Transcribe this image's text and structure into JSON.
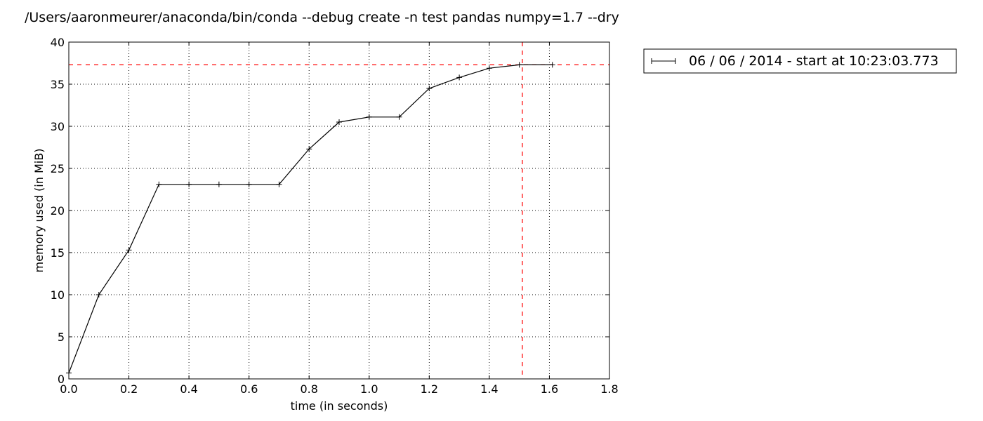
{
  "chart_data": {
    "type": "line",
    "title": "/Users/aaronmeurer/anaconda/bin/conda --debug create -n test pandas numpy=1.7 --dry",
    "xlabel": "time (in seconds)",
    "ylabel": "memory used (in MiB)",
    "xlim": [
      0.0,
      1.8
    ],
    "ylim": [
      0,
      40
    ],
    "x_ticks": [
      0.0,
      0.2,
      0.4,
      0.6,
      0.8,
      1.0,
      1.2,
      1.4,
      1.6,
      1.8
    ],
    "x_tick_labels": [
      "0.0",
      "0.2",
      "0.4",
      "0.6",
      "0.8",
      "1.0",
      "1.2",
      "1.4",
      "1.6",
      "1.8"
    ],
    "y_ticks": [
      0,
      5,
      10,
      15,
      20,
      25,
      30,
      35,
      40
    ],
    "y_tick_labels": [
      "0",
      "5",
      "10",
      "15",
      "20",
      "25",
      "30",
      "35",
      "40"
    ],
    "grid": true,
    "legend_position": "outside-right",
    "series": [
      {
        "name": "06 / 06 / 2014 - start at 10:23:03.773",
        "color": "#000000",
        "marker": "+",
        "x": [
          0.0,
          0.1,
          0.2,
          0.3,
          0.4,
          0.5,
          0.6,
          0.7,
          0.8,
          0.9,
          1.0,
          1.1,
          1.2,
          1.3,
          1.4,
          1.5,
          1.61
        ],
        "y": [
          0.7,
          10.0,
          15.3,
          23.1,
          23.1,
          23.1,
          23.1,
          23.1,
          27.3,
          30.5,
          31.1,
          31.1,
          34.5,
          35.8,
          36.9,
          37.3,
          37.3
        ]
      }
    ],
    "reference_lines": [
      {
        "orientation": "horizontal",
        "value": 37.3,
        "color": "#ff0000",
        "style": "dashed"
      },
      {
        "orientation": "vertical",
        "value": 1.51,
        "color": "#ff0000",
        "style": "dashed"
      }
    ]
  }
}
